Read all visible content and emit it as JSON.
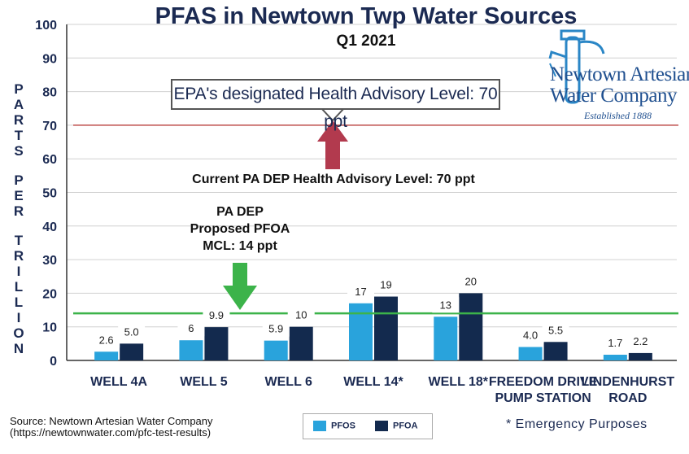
{
  "title": "PFAS in Newtown Twp Water Sources",
  "subtitle": "Q1 2021",
  "ylabel": "PARTS PER TRILLION",
  "epa_label": "EPA's designated Health Advisory Level: 70 ppt",
  "pa_current_label": "Current PA DEP Health Advisory Level: 70 ppt",
  "pa_proposed_lines": [
    "PA DEP",
    "Proposed PFOA",
    "MCL: 14 ppt"
  ],
  "logo": {
    "line1": "Newtown Artesian",
    "line2": "Water Company",
    "line3": "Established 1888"
  },
  "source": {
    "line1": "Source: Newtown Artesian Water Company",
    "line2": "(https://newtownwater.com/pfc-test-results)"
  },
  "footnote": "* Emergency Purposes",
  "colors": {
    "pfos": "#29a3dc",
    "pfoa": "#132a4e",
    "epa_line": "#c0504d",
    "mcl_line": "#3cb34a",
    "arrow_red": "#b23a4e",
    "arrow_green": "#3cb34a",
    "title": "#1b2a52"
  },
  "chart_data": {
    "type": "bar",
    "categories": [
      [
        "WELL 4A"
      ],
      [
        "WELL 5"
      ],
      [
        "WELL 6"
      ],
      [
        "WELL 14*"
      ],
      [
        "WELL 18*"
      ],
      [
        "FREEDOM DRIVE",
        "PUMP STATION"
      ],
      [
        "LINDENHURST",
        "ROAD"
      ]
    ],
    "series": [
      {
        "name": "PFOS",
        "values": [
          2.6,
          6,
          5.9,
          17,
          13,
          4.0,
          1.7
        ],
        "labels": [
          "2.6",
          "6",
          "5.9",
          "17",
          "13",
          "4.0",
          "1.7"
        ]
      },
      {
        "name": "PFOA",
        "values": [
          5.0,
          9.9,
          10,
          19,
          20,
          5.5,
          2.2
        ],
        "labels": [
          "5.0",
          "9.9",
          "10",
          "19",
          "20",
          "5.5",
          "2.2"
        ]
      }
    ],
    "reference_lines": [
      {
        "value": 70,
        "label": "EPA's designated Health Advisory Level: 70 ppt"
      },
      {
        "value": 14,
        "label": "PA DEP Proposed PFOA MCL: 14 ppt"
      }
    ],
    "ylim": [
      0,
      100
    ],
    "yticks": [
      0,
      10,
      20,
      30,
      40,
      50,
      60,
      70,
      80,
      90,
      100
    ],
    "grid": true,
    "legend": "bottom-center"
  }
}
